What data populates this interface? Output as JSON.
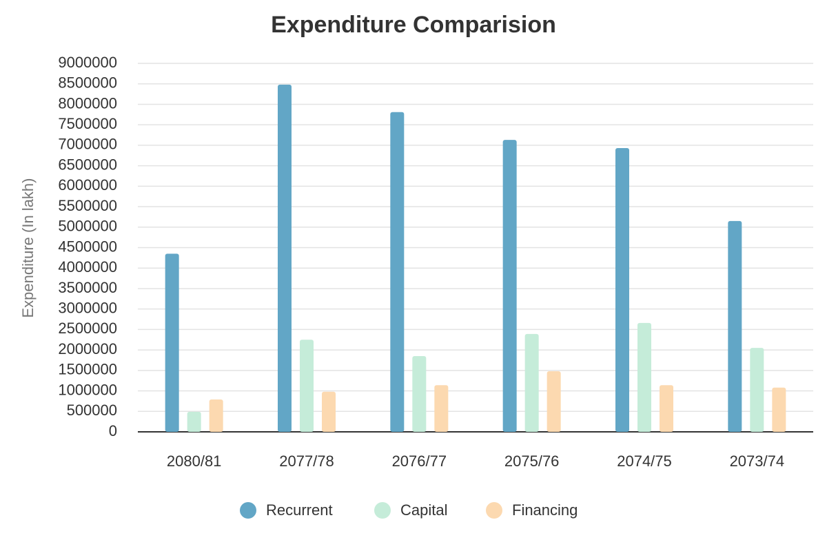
{
  "chart_data": {
    "type": "bar",
    "title": "Expenditure Comparision",
    "y_label": "Expenditure (In lakh)",
    "categories": [
      "2080/81",
      "2077/78",
      "2076/77",
      "2075/76",
      "2074/75",
      "2073/74"
    ],
    "series": [
      {
        "name": "Recurrent",
        "color": "#62a6c6",
        "values": [
          4350000,
          8480000,
          7810000,
          7130000,
          6930000,
          5150000
        ]
      },
      {
        "name": "Capital",
        "color": "#c5ecd9",
        "values": [
          490000,
          2250000,
          1850000,
          2390000,
          2660000,
          2050000
        ]
      },
      {
        "name": "Financing",
        "color": "#fcd9b0",
        "values": [
          790000,
          980000,
          1140000,
          1480000,
          1140000,
          1080000
        ]
      }
    ],
    "ylim": [
      0,
      9000000
    ],
    "yticks": [
      0,
      500000,
      1000000,
      1500000,
      2000000,
      2500000,
      3000000,
      3500000,
      4000000,
      4500000,
      5000000,
      5500000,
      6000000,
      6500000,
      7000000,
      7500000,
      8000000,
      8500000,
      9000000
    ],
    "grid": true,
    "legend": "bottom"
  }
}
